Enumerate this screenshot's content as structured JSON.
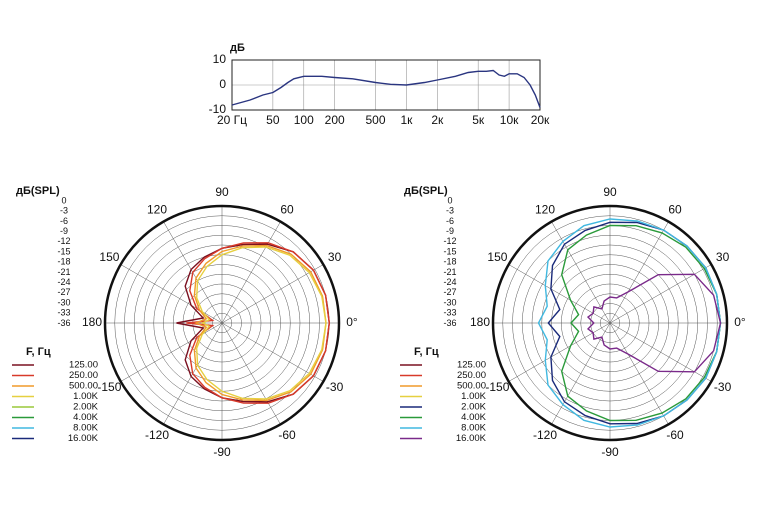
{
  "chart_data": [
    {
      "type": "line",
      "y_label": "дБ",
      "xscale": "log",
      "xlim": [
        20,
        20000
      ],
      "ylim": [
        -10,
        10
      ],
      "xticks": [
        {
          "value": 20,
          "label": "20 Гц"
        },
        50,
        100,
        200,
        500,
        {
          "value": 1000,
          "label": "1к"
        },
        {
          "value": 2000,
          "label": "2к"
        },
        {
          "value": 5000,
          "label": "5к"
        },
        {
          "value": 10000,
          "label": "10к"
        },
        {
          "value": 20000,
          "label": "20к"
        }
      ],
      "yticks": [
        -10,
        0,
        10
      ],
      "grid": true,
      "x": [
        20,
        30,
        40,
        50,
        60,
        70,
        80,
        100,
        150,
        200,
        300,
        500,
        700,
        1000,
        1500,
        2000,
        3000,
        4000,
        5000,
        6000,
        7000,
        8000,
        9000,
        10000,
        12000,
        14000,
        16000,
        18000,
        20000
      ],
      "series": [
        {
          "color": "#2a3580",
          "values": [
            -8,
            -6,
            -4,
            -3,
            -1,
            1,
            2.5,
            3.5,
            3.5,
            3,
            2.5,
            1,
            0.3,
            0,
            1,
            2,
            3.5,
            5,
            5.5,
            5.5,
            5.8,
            4,
            3.5,
            4.5,
            4.5,
            3,
            0,
            -4,
            -9
          ]
        }
      ]
    },
    {
      "type": "polar",
      "r_label": "дБ(SPL)",
      "legend_title": "F, Гц",
      "rlim": [
        -36,
        0
      ],
      "rticks": [
        0,
        -3,
        -6,
        -9,
        -12,
        -15,
        -18,
        -21,
        -24,
        -27,
        -30,
        -33,
        -36
      ],
      "thetaticks": [
        90,
        120,
        150,
        180,
        -150,
        -120,
        -90,
        -60,
        -30,
        {
          "value": 0,
          "label": "0°"
        },
        30,
        60
      ],
      "theta": [
        0,
        15,
        30,
        45,
        60,
        75,
        90,
        105,
        120,
        135,
        150,
        165,
        180,
        195,
        210,
        225,
        240,
        255,
        270,
        285,
        300,
        315,
        330,
        345
      ],
      "series": [
        {
          "name": "125.00",
          "color": "#7a1020",
          "values": [
            -3,
            -3,
            -3.5,
            -5,
            -8,
            -11,
            -13,
            -15,
            -17,
            -20,
            -25,
            -30,
            -22,
            -30,
            -25,
            -20,
            -17,
            -15,
            -13,
            -11,
            -8,
            -5,
            -3.5,
            -3
          ]
        },
        {
          "name": "250.00",
          "color": "#d83a2a",
          "values": [
            -3,
            -3,
            -3.5,
            -5,
            -7.5,
            -10.5,
            -13,
            -15.5,
            -18,
            -22,
            -27,
            -33,
            -25,
            -33,
            -27,
            -22,
            -18,
            -15.5,
            -13,
            -10.5,
            -7.5,
            -5,
            -3.5,
            -3
          ]
        },
        {
          "name": "500.00",
          "color": "#f09a2a",
          "values": [
            -4,
            -4,
            -4.5,
            -6,
            -8.5,
            -11.5,
            -14,
            -17,
            -20,
            -24,
            -28,
            -31,
            -28,
            -31,
            -28,
            -24,
            -20,
            -17,
            -14,
            -11.5,
            -8.5,
            -6,
            -4.5,
            -4
          ]
        },
        {
          "name": "1.00K",
          "color": "#e6d040",
          "values": [
            -4,
            -4.2,
            -5,
            -6.5,
            -9,
            -12,
            -15,
            -18,
            -21,
            -25,
            -29,
            -32,
            -30,
            -32,
            -29,
            -25,
            -21,
            -18,
            -15,
            -12,
            -9,
            -6.5,
            -5,
            -4.2
          ]
        },
        {
          "name": "2.00K",
          "color": "#9ac83a",
          "values": [
            null,
            null,
            null,
            null,
            null,
            null,
            null,
            null,
            null,
            null,
            null,
            null,
            null,
            null,
            null,
            null,
            null,
            null,
            null,
            null,
            null,
            null,
            null,
            null
          ]
        },
        {
          "name": "4.00K",
          "color": "#2a9a3a",
          "values": [
            null,
            null,
            null,
            null,
            null,
            null,
            null,
            null,
            null,
            null,
            null,
            null,
            null,
            null,
            null,
            null,
            null,
            null,
            null,
            null,
            null,
            null,
            null,
            null
          ]
        },
        {
          "name": "8.00K",
          "color": "#40b8e0",
          "values": [
            null,
            null,
            null,
            null,
            null,
            null,
            null,
            null,
            null,
            null,
            null,
            null,
            null,
            null,
            null,
            null,
            null,
            null,
            null,
            null,
            null,
            null,
            null,
            null
          ]
        },
        {
          "name": "16.00K",
          "color": "#1a2a7a",
          "values": [
            null,
            null,
            null,
            null,
            null,
            null,
            null,
            null,
            null,
            null,
            null,
            null,
            null,
            null,
            null,
            null,
            null,
            null,
            null,
            null,
            null,
            null,
            null,
            null
          ]
        }
      ]
    },
    {
      "type": "polar",
      "r_label": "дБ(SPL)",
      "legend_title": "F, Гц",
      "rlim": [
        -36,
        0
      ],
      "rticks": [
        0,
        -3,
        -6,
        -9,
        -12,
        -15,
        -18,
        -21,
        -24,
        -27,
        -30,
        -33,
        -36
      ],
      "thetaticks": [
        90,
        120,
        150,
        180,
        -150,
        -120,
        -90,
        -60,
        -30,
        {
          "value": 0,
          "label": "0°"
        },
        30,
        60
      ],
      "theta": [
        0,
        15,
        30,
        45,
        60,
        75,
        90,
        105,
        120,
        135,
        150,
        165,
        180,
        195,
        210,
        225,
        240,
        255,
        270,
        285,
        300,
        315,
        330,
        345
      ],
      "series": [
        {
          "name": "125.00",
          "color": "#7a1020",
          "values": [
            null,
            null,
            null,
            null,
            null,
            null,
            null,
            null,
            null,
            null,
            null,
            null,
            null,
            null,
            null,
            null,
            null,
            null,
            null,
            null,
            null,
            null,
            null,
            null
          ]
        },
        {
          "name": "250.00",
          "color": "#d83a2a",
          "values": [
            null,
            null,
            null,
            null,
            null,
            null,
            null,
            null,
            null,
            null,
            null,
            null,
            null,
            null,
            null,
            null,
            null,
            null,
            null,
            null,
            null,
            null,
            null,
            null
          ]
        },
        {
          "name": "500.00",
          "color": "#f09a2a",
          "values": [
            null,
            null,
            null,
            null,
            null,
            null,
            null,
            null,
            null,
            null,
            null,
            null,
            null,
            null,
            null,
            null,
            null,
            null,
            null,
            null,
            null,
            null,
            null,
            null
          ]
        },
        {
          "name": "1.00K",
          "color": "#e6d040",
          "values": [
            null,
            null,
            null,
            null,
            null,
            null,
            null,
            null,
            null,
            null,
            null,
            null,
            null,
            null,
            null,
            null,
            null,
            null,
            null,
            null,
            null,
            null,
            null,
            null
          ]
        },
        {
          "name": "2.00K",
          "color": "#1a2a7a",
          "values": [
            -2,
            -2,
            -2,
            -2.5,
            -3,
            -4,
            -5,
            -6.5,
            -8,
            -11,
            -15,
            -20,
            -17,
            -20,
            -15,
            -11,
            -8,
            -6.5,
            -5,
            -4,
            -3,
            -2.5,
            -2,
            -2
          ]
        },
        {
          "name": "4.00K",
          "color": "#2a9a3a",
          "values": [
            -2,
            -2,
            -2.5,
            -3,
            -4,
            -5,
            -6,
            -8,
            -10,
            -15,
            -22,
            -26,
            -24,
            -26,
            -22,
            -15,
            -10,
            -8,
            -6,
            -5,
            -4,
            -3,
            -2.5,
            -2
          ]
        },
        {
          "name": "8.00K",
          "color": "#40b8e0",
          "values": [
            -2,
            -2,
            -2,
            -2.5,
            -3,
            -3.5,
            -4,
            -5,
            -7,
            -9,
            -13,
            -16,
            -14,
            -16,
            -13,
            -9,
            -7,
            -5,
            -4,
            -3.5,
            -3,
            -2.5,
            -2,
            -2
          ]
        },
        {
          "name": "16.00K",
          "color": "#7a2a8a",
          "values": [
            -2,
            -3,
            -6,
            -15,
            -25,
            -28,
            -28,
            -29,
            -31,
            -29,
            -30,
            -29,
            -31,
            -29,
            -30,
            -29,
            -31,
            -29,
            -28,
            -28,
            -25,
            -15,
            -6,
            -3
          ]
        }
      ]
    }
  ]
}
